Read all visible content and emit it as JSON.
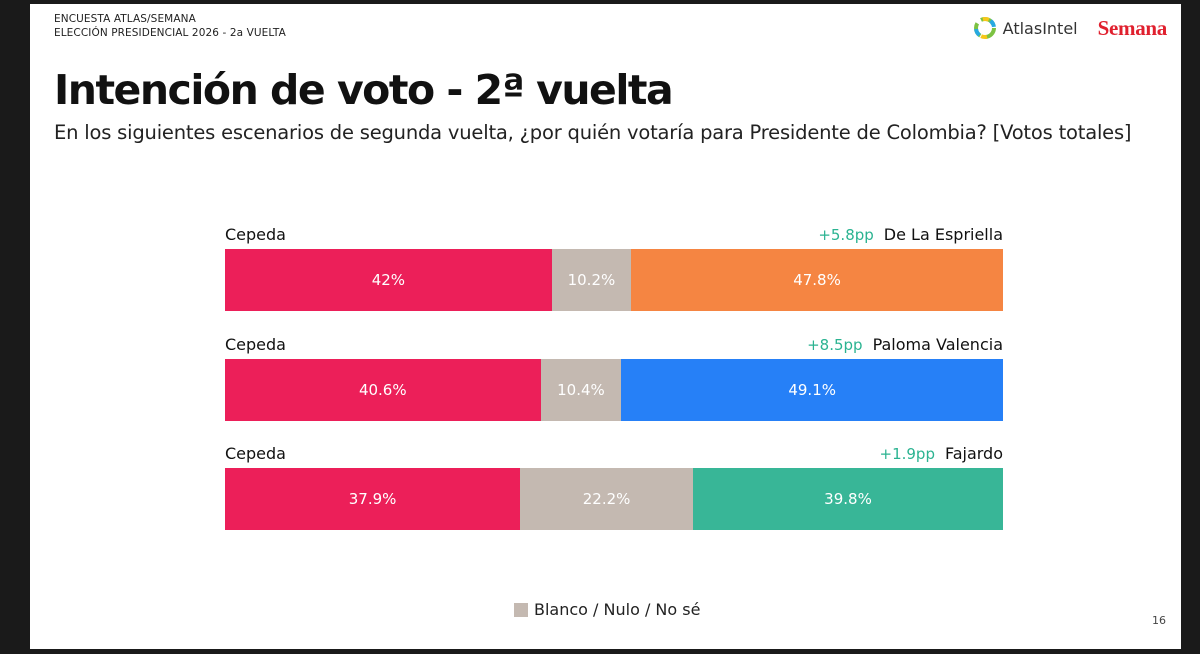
{
  "header": {
    "line1": "ENCUESTA ATLAS/SEMANA",
    "line2": "ELECCIÓN PRESIDENCIAL 2026 - 2a VUELTA",
    "logo_atlas": "AtlasIntel",
    "logo_semana": "Semana"
  },
  "title": "Intención de voto - 2ª vuelta",
  "subtitle": "En los siguientes escenarios de segunda vuelta, ¿por quién votaría para Presidente de Colombia? [Votos totales]",
  "legend": {
    "blank_label": "Blanco / Nulo / No sé"
  },
  "page_number": "16",
  "colors": {
    "left": "#ec1f59",
    "blank": "#c4b9b1",
    "diff_text": "#2bb391"
  },
  "chart_data": {
    "type": "bar",
    "orientation": "horizontal-stacked",
    "scenarios": [
      {
        "left_name": "Cepeda",
        "right_name": "De La Espriella",
        "diff": "+5.8pp",
        "values": [
          42,
          10.2,
          47.8
        ],
        "labels": [
          "42%",
          "10.2%",
          "47.8%"
        ],
        "right_color": "#f58542"
      },
      {
        "left_name": "Cepeda",
        "right_name": "Paloma Valencia",
        "diff": "+8.5pp",
        "values": [
          40.6,
          10.4,
          49.1
        ],
        "labels": [
          "40.6%",
          "10.4%",
          "49.1%"
        ],
        "right_color": "#2680f7"
      },
      {
        "left_name": "Cepeda",
        "right_name": "Fajardo",
        "diff": "+1.9pp",
        "values": [
          37.9,
          22.2,
          39.8
        ],
        "labels": [
          "37.9%",
          "22.2%",
          "39.8%"
        ],
        "right_color": "#38b697"
      }
    ]
  }
}
